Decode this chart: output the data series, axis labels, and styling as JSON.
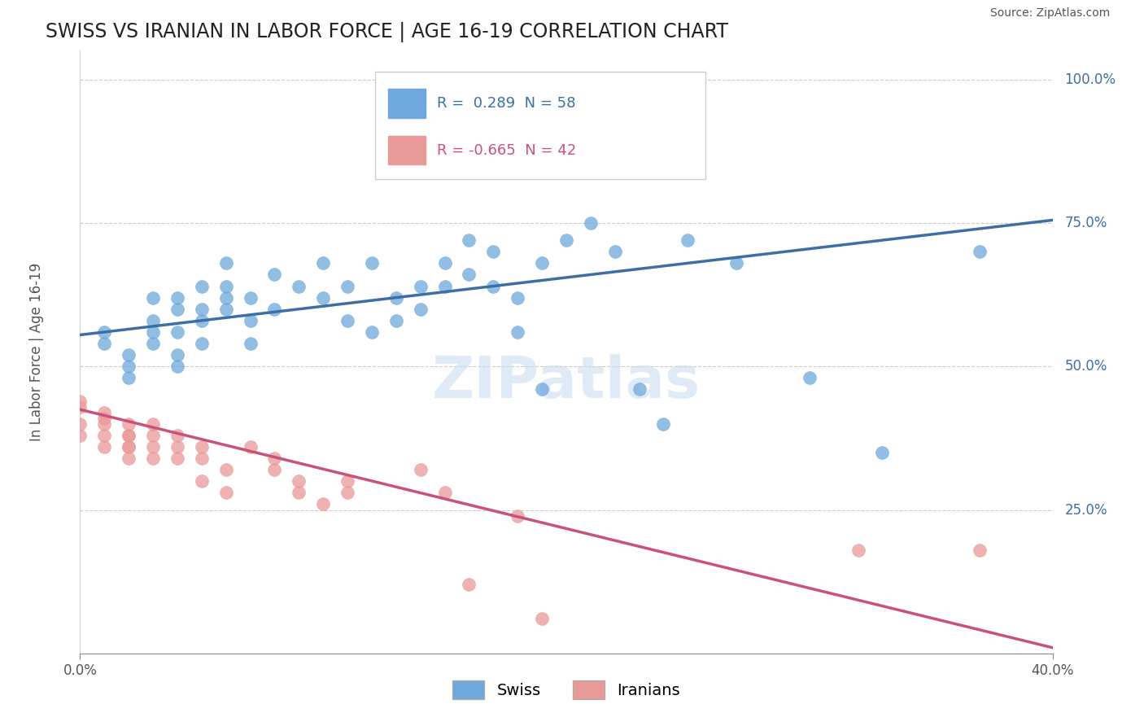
{
  "title": "SWISS VS IRANIAN IN LABOR FORCE | AGE 16-19 CORRELATION CHART",
  "source_text": "Source: ZipAtlas.com",
  "xlabel": "",
  "ylabel": "In Labor Force | Age 16-19",
  "r_swiss": 0.289,
  "n_swiss": 58,
  "r_iranian": -0.665,
  "n_iranian": 42,
  "xmin": 0.0,
  "xmax": 0.4,
  "ymin": 0.0,
  "ymax": 1.05,
  "yticks": [
    0.25,
    0.5,
    0.75,
    1.0
  ],
  "ytick_labels": [
    "25.0%",
    "50.0%",
    "75.0%",
    "100.0%"
  ],
  "xtick_labels": [
    "0.0%",
    "40.0%"
  ],
  "watermark": "ZIPatlas",
  "swiss_color": "#6fa8dc",
  "iranian_color": "#ea9999",
  "swiss_line_color": "#3d6fa5",
  "iranian_line_color": "#c9527a",
  "swiss_scatter": [
    [
      0.01,
      0.54
    ],
    [
      0.01,
      0.56
    ],
    [
      0.02,
      0.5
    ],
    [
      0.02,
      0.52
    ],
    [
      0.02,
      0.48
    ],
    [
      0.03,
      0.56
    ],
    [
      0.03,
      0.62
    ],
    [
      0.03,
      0.58
    ],
    [
      0.03,
      0.54
    ],
    [
      0.04,
      0.6
    ],
    [
      0.04,
      0.56
    ],
    [
      0.04,
      0.52
    ],
    [
      0.04,
      0.62
    ],
    [
      0.04,
      0.5
    ],
    [
      0.05,
      0.64
    ],
    [
      0.05,
      0.58
    ],
    [
      0.05,
      0.6
    ],
    [
      0.05,
      0.54
    ],
    [
      0.06,
      0.68
    ],
    [
      0.06,
      0.62
    ],
    [
      0.06,
      0.64
    ],
    [
      0.06,
      0.6
    ],
    [
      0.07,
      0.62
    ],
    [
      0.07,
      0.58
    ],
    [
      0.07,
      0.54
    ],
    [
      0.08,
      0.66
    ],
    [
      0.08,
      0.6
    ],
    [
      0.09,
      0.64
    ],
    [
      0.1,
      0.68
    ],
    [
      0.1,
      0.62
    ],
    [
      0.11,
      0.58
    ],
    [
      0.11,
      0.64
    ],
    [
      0.12,
      0.56
    ],
    [
      0.12,
      0.68
    ],
    [
      0.13,
      0.62
    ],
    [
      0.13,
      0.58
    ],
    [
      0.14,
      0.64
    ],
    [
      0.14,
      0.6
    ],
    [
      0.15,
      0.68
    ],
    [
      0.15,
      0.64
    ],
    [
      0.16,
      0.72
    ],
    [
      0.16,
      0.66
    ],
    [
      0.17,
      0.7
    ],
    [
      0.17,
      0.64
    ],
    [
      0.18,
      0.62
    ],
    [
      0.18,
      0.56
    ],
    [
      0.19,
      0.68
    ],
    [
      0.19,
      0.46
    ],
    [
      0.2,
      0.72
    ],
    [
      0.21,
      0.75
    ],
    [
      0.22,
      0.7
    ],
    [
      0.23,
      0.46
    ],
    [
      0.24,
      0.4
    ],
    [
      0.25,
      0.72
    ],
    [
      0.27,
      0.68
    ],
    [
      0.3,
      0.48
    ],
    [
      0.33,
      0.35
    ],
    [
      0.37,
      0.7
    ]
  ],
  "iranian_scatter": [
    [
      0.0,
      0.43
    ],
    [
      0.0,
      0.38
    ],
    [
      0.0,
      0.4
    ],
    [
      0.0,
      0.44
    ],
    [
      0.01,
      0.41
    ],
    [
      0.01,
      0.38
    ],
    [
      0.01,
      0.36
    ],
    [
      0.01,
      0.42
    ],
    [
      0.01,
      0.4
    ],
    [
      0.02,
      0.38
    ],
    [
      0.02,
      0.36
    ],
    [
      0.02,
      0.4
    ],
    [
      0.02,
      0.34
    ],
    [
      0.02,
      0.38
    ],
    [
      0.02,
      0.36
    ],
    [
      0.03,
      0.38
    ],
    [
      0.03,
      0.34
    ],
    [
      0.03,
      0.36
    ],
    [
      0.03,
      0.4
    ],
    [
      0.04,
      0.36
    ],
    [
      0.04,
      0.34
    ],
    [
      0.04,
      0.38
    ],
    [
      0.05,
      0.34
    ],
    [
      0.05,
      0.3
    ],
    [
      0.05,
      0.36
    ],
    [
      0.06,
      0.32
    ],
    [
      0.06,
      0.28
    ],
    [
      0.07,
      0.36
    ],
    [
      0.08,
      0.32
    ],
    [
      0.08,
      0.34
    ],
    [
      0.09,
      0.28
    ],
    [
      0.09,
      0.3
    ],
    [
      0.1,
      0.26
    ],
    [
      0.11,
      0.3
    ],
    [
      0.11,
      0.28
    ],
    [
      0.14,
      0.32
    ],
    [
      0.15,
      0.28
    ],
    [
      0.16,
      0.12
    ],
    [
      0.18,
      0.24
    ],
    [
      0.19,
      0.06
    ],
    [
      0.32,
      0.18
    ],
    [
      0.37,
      0.18
    ]
  ],
  "swiss_line_x": [
    0.0,
    0.4
  ],
  "swiss_line_y": [
    0.555,
    0.755
  ],
  "iranian_line_x": [
    0.0,
    0.4
  ],
  "iranian_line_y": [
    0.425,
    0.01
  ],
  "grid_color": "#cccccc",
  "background_color": "#ffffff"
}
